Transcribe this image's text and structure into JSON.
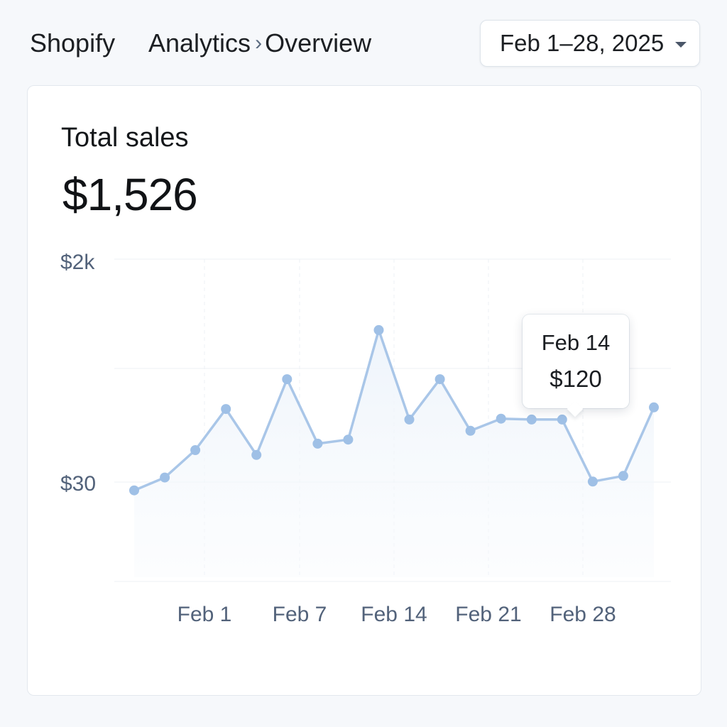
{
  "header": {
    "brand": "Shopify",
    "breadcrumb": [
      {
        "label": "Analytics"
      },
      {
        "label": "Overview"
      }
    ],
    "breadcrumb_separator": "›",
    "date_range": "Feb 1–28, 2025"
  },
  "card": {
    "title": "Total sales",
    "value": "$1,526"
  },
  "tooltip": {
    "date": "Feb 14",
    "value": "$120"
  },
  "colors": {
    "line": "#a9c6e8",
    "point": "#9fc0e6",
    "fill_top": "#eef4fb",
    "grid": "#edf0f4",
    "axis_text": "#52627a"
  },
  "chart_data": {
    "type": "area",
    "ytick_labels": [
      "$2k",
      "$30"
    ],
    "xtick_labels": [
      "Feb 1",
      "Feb 7",
      "Feb 14",
      "Feb 21",
      "Feb 28"
    ],
    "grid": true,
    "series": [
      {
        "values": [
          565,
          645,
          815,
          1070,
          785,
          1255,
          855,
          880,
          1560,
          1005,
          1255,
          935,
          1010,
          1005,
          1005,
          620,
          655,
          1080
        ]
      }
    ]
  }
}
